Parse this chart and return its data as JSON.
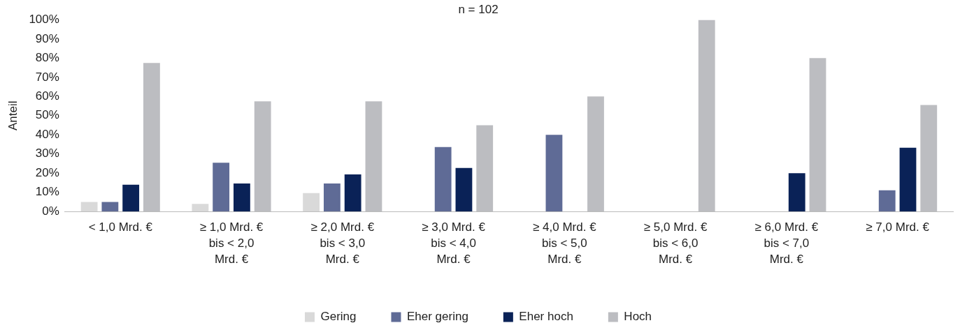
{
  "chart_data": {
    "type": "bar",
    "title": "n = 102",
    "ylabel": "Anteil",
    "categories": [
      "< 1,0 Mrd. €",
      "≥ 1,0 Mrd. €\nbis < 2,0\nMrd. €",
      "≥ 2,0 Mrd. €\nbis < 3,0\nMrd. €",
      "≥ 3,0 Mrd. €\nbis < 4,0\nMrd. €",
      "≥ 4,0 Mrd. €\nbis < 5,0\nMrd. €",
      "≥ 5,0 Mrd. €\nbis < 6,0\nMrd. €",
      "≥ 6,0 Mrd. €\nbis < 7,0\nMrd. €",
      "≥ 7,0 Mrd. €"
    ],
    "series": [
      {
        "name": "Gering",
        "color": "#d9d9d9",
        "values": [
          5,
          4,
          9.6,
          0,
          0,
          0,
          0,
          0
        ]
      },
      {
        "name": "Eher gering",
        "color": "#5f6b96",
        "values": [
          5,
          25.4,
          14.6,
          33.6,
          40,
          0,
          0,
          11.1
        ]
      },
      {
        "name": "Eher hoch",
        "color": "#0a2257",
        "values": [
          14,
          14.6,
          19.3,
          22.7,
          0,
          0,
          20,
          33.3
        ]
      },
      {
        "name": "Hoch",
        "color": "#bcbdc1",
        "values": [
          77.5,
          57.5,
          57.5,
          45,
          60,
          100,
          80,
          55.6
        ]
      }
    ],
    "ylim": [
      0,
      100
    ],
    "yticks": [
      {
        "value": 0,
        "label": "0%"
      },
      {
        "value": 10,
        "label": "10%"
      },
      {
        "value": 20,
        "label": "20%"
      },
      {
        "value": 30,
        "label": "30%"
      },
      {
        "value": 40,
        "label": "40%"
      },
      {
        "value": 50,
        "label": "50%"
      },
      {
        "value": 60,
        "label": "60%"
      },
      {
        "value": 70,
        "label": "70%"
      },
      {
        "value": 80,
        "label": "80%"
      },
      {
        "value": 90,
        "label": "90%"
      },
      {
        "value": 100,
        "label": "100%"
      }
    ],
    "grid": false,
    "legend": "bottom"
  }
}
